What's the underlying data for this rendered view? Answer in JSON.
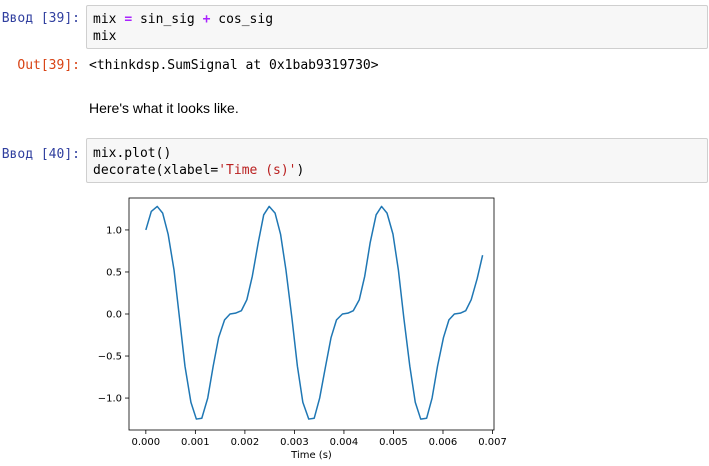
{
  "cells": [
    {
      "prompt": "Ввод [39]:",
      "lines": [
        {
          "a": "mix ",
          "op": "=",
          "b": " sin_sig ",
          "op2": "+",
          "c": " cos_sig"
        },
        {
          "a": "mix"
        }
      ]
    },
    {
      "prompt": "Out[39]:",
      "text": "<thinkdsp.SumSignal at 0x1bab9319730>"
    },
    {
      "text": "Here's what it looks like."
    },
    {
      "prompt": "Ввод [40]:",
      "lines": [
        {
          "a": "mix.plot()"
        },
        {
          "a": "decorate(xlabel=",
          "str": "'Time (s)'",
          "b": ")"
        }
      ]
    }
  ],
  "chart_data": {
    "type": "line",
    "xlabel": "Time (s)",
    "xlim": [
      -0.00034,
      0.00703
    ],
    "ylim": [
      -1.38,
      1.38
    ],
    "xticks": [
      0.0,
      0.001,
      0.002,
      0.003,
      0.004,
      0.005,
      0.006,
      0.007
    ],
    "xtick_labels": [
      "0.000",
      "0.001",
      "0.002",
      "0.003",
      "0.004",
      "0.005",
      "0.006",
      "0.007"
    ],
    "yticks": [
      1.0,
      0.5,
      0.0,
      -0.5,
      -1.0
    ],
    "ytick_labels": [
      "1.0",
      "0.5",
      "0.0",
      "−0.5",
      "−1.0"
    ],
    "grid": false,
    "line_color": "#1f77b4",
    "series": [
      {
        "x": [
          0.0,
          0.00011,
          0.00023,
          0.00034,
          0.00045,
          0.00057,
          0.00068,
          0.00079,
          0.00091,
          0.00102,
          0.00113,
          0.00125,
          0.00136,
          0.00147,
          0.00159,
          0.0017,
          0.00181,
          0.00193,
          0.00204,
          0.00215,
          0.00227,
          0.00238,
          0.00249,
          0.00261,
          0.00272,
          0.00283,
          0.00295,
          0.00306,
          0.00317,
          0.00329,
          0.0034,
          0.00351,
          0.00363,
          0.00374,
          0.00385,
          0.00397,
          0.00408,
          0.00419,
          0.00431,
          0.00442,
          0.00453,
          0.00465,
          0.00476,
          0.00487,
          0.00499,
          0.0051,
          0.00521,
          0.00533,
          0.00544,
          0.00555,
          0.00567,
          0.00578,
          0.00589,
          0.00601,
          0.00612,
          0.00623,
          0.00635,
          0.00646,
          0.00657,
          0.00669,
          0.0068
        ],
        "y": [
          1.0,
          1.22,
          1.28,
          1.2,
          0.95,
          0.52,
          -0.05,
          -0.62,
          -1.05,
          -1.25,
          -1.24,
          -1.0,
          -0.62,
          -0.28,
          -0.07,
          0.0,
          0.01,
          0.04,
          0.17,
          0.45,
          0.85,
          1.18,
          1.28,
          1.2,
          0.95,
          0.52,
          -0.05,
          -0.62,
          -1.05,
          -1.25,
          -1.24,
          -1.0,
          -0.62,
          -0.28,
          -0.07,
          0.0,
          0.01,
          0.04,
          0.17,
          0.45,
          0.85,
          1.18,
          1.28,
          1.2,
          0.95,
          0.52,
          -0.05,
          -0.62,
          -1.05,
          -1.25,
          -1.24,
          -1.0,
          -0.62,
          -0.28,
          -0.07,
          0.0,
          0.01,
          0.04,
          0.17,
          0.42,
          0.7
        ]
      }
    ]
  }
}
